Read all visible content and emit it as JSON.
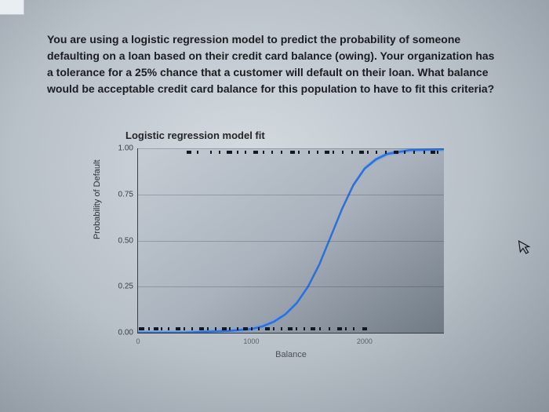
{
  "question_text": "You are using a logistic regression model to predict the probability of someone defaulting on a loan based on their credit card balance (owing). Your organization has a tolerance for a 25% chance that a customer will default on their loan. What balance would be acceptable credit card balance for this population to have to fit this criteria?",
  "chart": {
    "type": "line",
    "title": "Logistic regression model fit",
    "ylabel": "Probability of Default",
    "xlabel": "Balance",
    "ylim": [
      0,
      1
    ],
    "xlim": [
      0,
      2700
    ],
    "yticks": [
      0.0,
      0.25,
      0.5,
      0.75,
      1.0
    ],
    "ytick_labels": [
      "0.00",
      "0.25",
      "0.50",
      "0.75",
      "1.00"
    ],
    "xticks": [
      0,
      1000,
      2000
    ],
    "xtick_labels": [
      "0",
      "1000",
      "2000"
    ],
    "curve_color": "#2e6fd8",
    "curve_fill": "#6aa0ef",
    "curve_width": 2.5,
    "background": "#b3bcc6",
    "grid_color": "rgba(40,45,55,0.25)",
    "label_fontsize": 11,
    "tick_fontsize": 10,
    "title_fontsize": 13,
    "curve_points": [
      [
        0,
        0.0
      ],
      [
        200,
        0.0
      ],
      [
        400,
        0.0
      ],
      [
        600,
        0.005
      ],
      [
        800,
        0.01
      ],
      [
        1000,
        0.02
      ],
      [
        1100,
        0.035
      ],
      [
        1200,
        0.06
      ],
      [
        1300,
        0.1
      ],
      [
        1400,
        0.16
      ],
      [
        1500,
        0.25
      ],
      [
        1600,
        0.37
      ],
      [
        1700,
        0.52
      ],
      [
        1800,
        0.67
      ],
      [
        1900,
        0.8
      ],
      [
        2000,
        0.89
      ],
      [
        2100,
        0.94
      ],
      [
        2200,
        0.97
      ],
      [
        2400,
        0.99
      ],
      [
        2700,
        0.995
      ]
    ],
    "rug_top_x": [
      430,
      520,
      640,
      710,
      780,
      820,
      870,
      940,
      1020,
      1100,
      1180,
      1260,
      1340,
      1410,
      1500,
      1580,
      1650,
      1720,
      1800,
      1880,
      1950,
      2020,
      2100,
      2180,
      2260,
      2350,
      2430,
      2520,
      2580,
      2640
    ],
    "rug_bottom_x": [
      10,
      40,
      90,
      140,
      200,
      260,
      330,
      400,
      470,
      540,
      610,
      680,
      740,
      800,
      870,
      930,
      1000,
      1060,
      1120,
      1190,
      1260,
      1320,
      1390,
      1460,
      1520,
      1600,
      1680,
      1760,
      1830,
      1900,
      1980
    ]
  }
}
